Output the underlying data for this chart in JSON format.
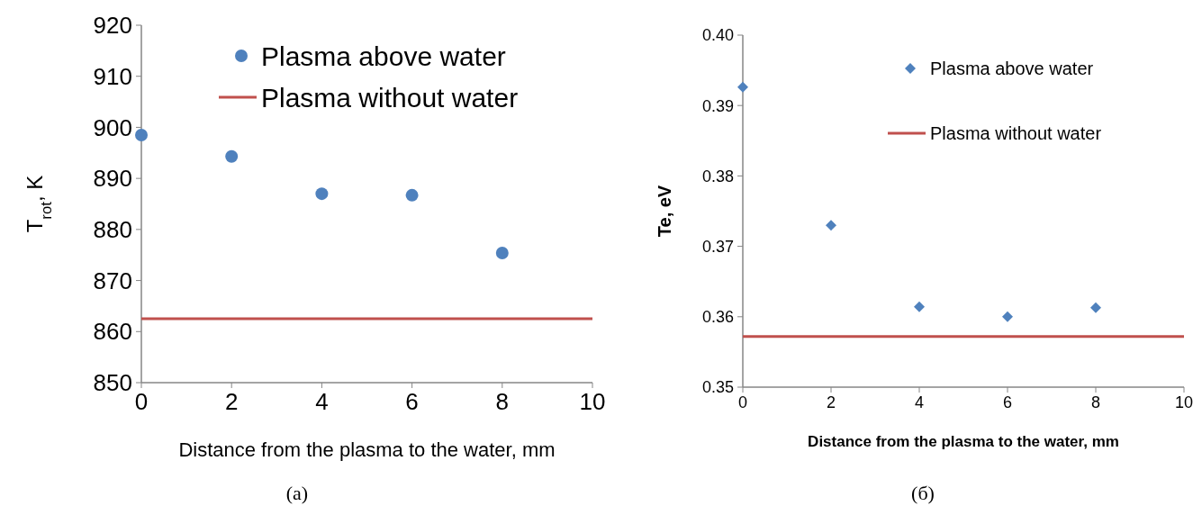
{
  "chart_data": [
    {
      "type": "scatter",
      "xlabel": "Distance from the plasma to the water, mm",
      "ylabel": "T$_{rot}$, K",
      "x": [
        0,
        2,
        4,
        6,
        8
      ],
      "xlim": [
        0,
        10
      ],
      "xticks": [
        0,
        2,
        4,
        6,
        8,
        10
      ],
      "ylim": [
        850,
        920
      ],
      "yticks": [
        850,
        860,
        870,
        880,
        890,
        900,
        910,
        920
      ],
      "grid": false,
      "legend": "top right",
      "marker": "circle",
      "annotations": [
        "(a)"
      ],
      "series": [
        {
          "name": "Plasma above water",
          "color": "#4f81bd",
          "values": [
            898.5,
            894.3,
            887.0,
            886.7,
            875.4
          ]
        }
      ],
      "ref_lines": [
        {
          "axis": "y",
          "value": 862.5,
          "label": "Plasma without water",
          "color": "#c0504d"
        }
      ]
    },
    {
      "type": "scatter",
      "xlabel": "Distance from the plasma to the water, mm",
      "ylabel": "Te, eV",
      "x": [
        0,
        2,
        4,
        6,
        8
      ],
      "xlim": [
        0,
        10
      ],
      "xticks": [
        0,
        2,
        4,
        6,
        8,
        10
      ],
      "ylim": [
        0.35,
        0.4
      ],
      "yticks": [
        {
          "value": 0.35,
          "label": "0.35"
        },
        {
          "value": 0.36,
          "label": "0.36"
        },
        {
          "value": 0.37,
          "label": "0.37"
        },
        {
          "value": 0.38,
          "label": "0.38"
        },
        {
          "value": 0.39,
          "label": "0.39"
        },
        {
          "value": 0.4,
          "label": "0.40"
        }
      ],
      "grid": false,
      "legend": "top right",
      "marker": "diamond",
      "annotations": [
        "(б)"
      ],
      "series": [
        {
          "name": "Plasma above water",
          "color": "#4f81bd",
          "values": [
            0.3926,
            0.373,
            0.3614,
            0.36,
            0.3613
          ]
        }
      ],
      "ref_lines": [
        {
          "axis": "y",
          "value": 0.3572,
          "label": "Plasma without water",
          "color": "#c0504d"
        }
      ]
    }
  ]
}
